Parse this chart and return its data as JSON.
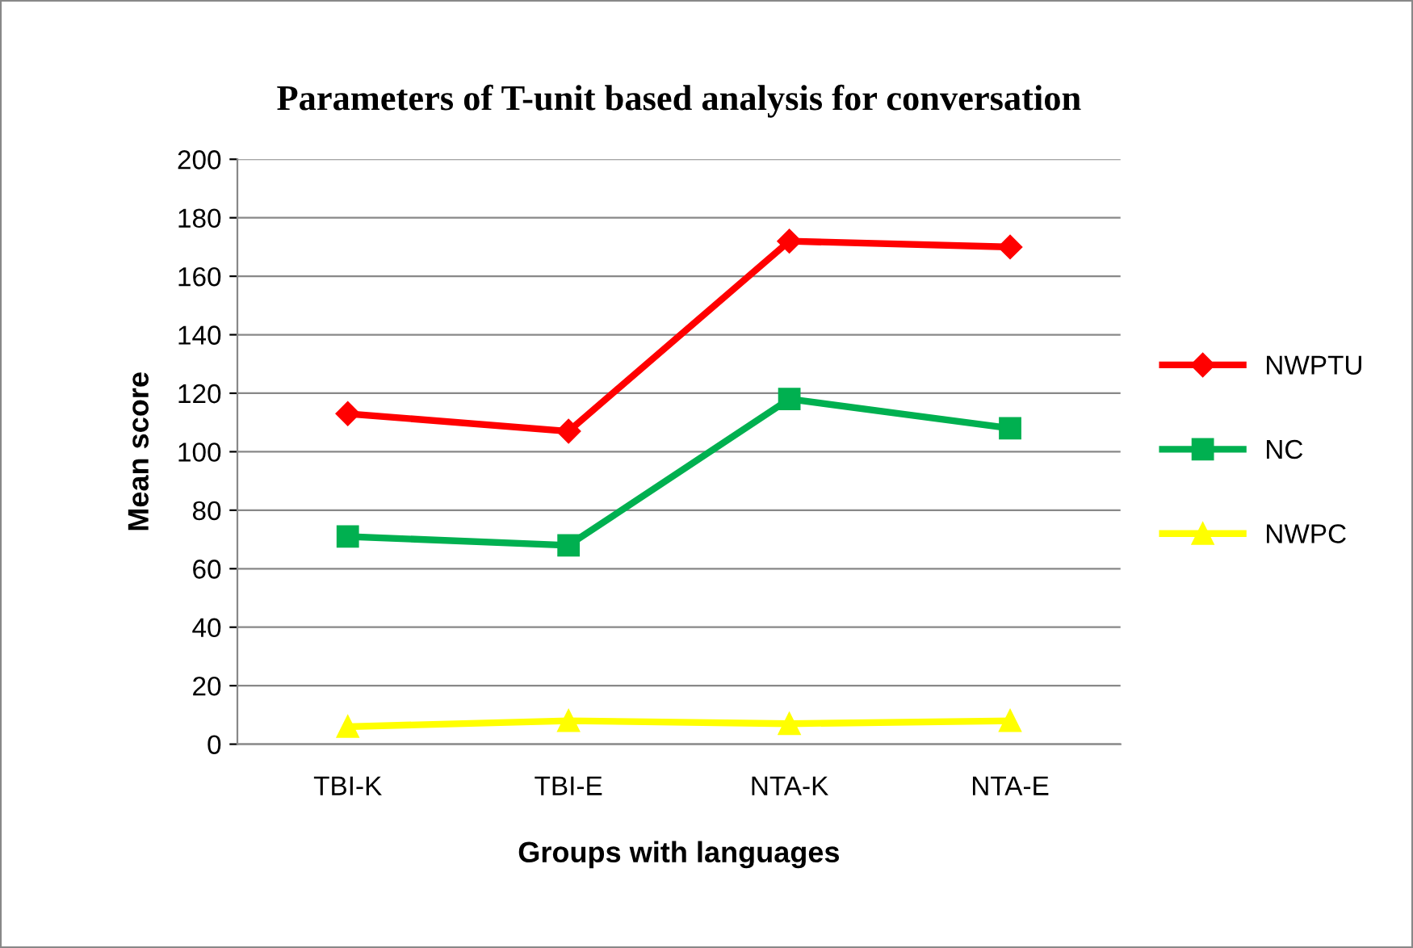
{
  "chart_data": {
    "type": "line",
    "title": "Parameters of T-unit based analysis for conversation",
    "xlabel": "Groups with languages",
    "ylabel": "Mean score",
    "categories": [
      "TBI-K",
      "TBI-E",
      "NTA-K",
      "NTA-E"
    ],
    "series": [
      {
        "name": "NWPTU",
        "color": "#ff0000",
        "marker": "diamond",
        "values": [
          113,
          107,
          172,
          170
        ]
      },
      {
        "name": "NC",
        "color": "#00b050",
        "marker": "square",
        "values": [
          71,
          68,
          118,
          108
        ]
      },
      {
        "name": "NWPC",
        "color": "#ffff00",
        "marker": "triangle",
        "values": [
          6,
          8,
          7,
          8
        ]
      }
    ],
    "ylim": [
      0,
      200
    ],
    "yticks": [
      0,
      20,
      40,
      60,
      80,
      100,
      120,
      140,
      160,
      180,
      200
    ],
    "grid": "y",
    "legend": "right",
    "line_style": "solid"
  }
}
